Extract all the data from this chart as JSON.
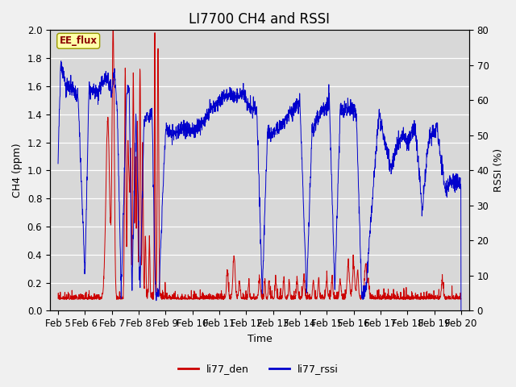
{
  "title": "LI7700 CH4 and RSSI",
  "xlabel": "Time",
  "ylabel_left": "CH4 (ppm)",
  "ylabel_right": "RSSI (%)",
  "ylim_left": [
    0.0,
    2.0
  ],
  "ylim_right": [
    0,
    80
  ],
  "yticks_left": [
    0.0,
    0.2,
    0.4,
    0.6,
    0.8,
    1.0,
    1.2,
    1.4,
    1.6,
    1.8,
    2.0
  ],
  "yticks_right": [
    0,
    10,
    20,
    30,
    40,
    50,
    60,
    70,
    80
  ],
  "xlim": [
    4.7,
    20.3
  ],
  "xtick_labels": [
    "Feb 5",
    "Feb 6",
    "Feb 7",
    "Feb 8",
    "Feb 9",
    "Feb 10",
    "Feb 11",
    "Feb 12",
    "Feb 13",
    "Feb 14",
    "Feb 15",
    "Feb 16",
    "Feb 17",
    "Feb 18",
    "Feb 19",
    "Feb 20"
  ],
  "xtick_positions": [
    5,
    6,
    7,
    8,
    9,
    10,
    11,
    12,
    13,
    14,
    15,
    16,
    17,
    18,
    19,
    20
  ],
  "annotation_text": "EE_flux",
  "fig_bg_color": "#f0f0f0",
  "plot_bg_color": "#d8d8d8",
  "line_color_red": "#cc0000",
  "line_color_blue": "#0000cc",
  "legend_label_red": "li77_den",
  "legend_label_blue": "li77_rssi",
  "title_fontsize": 12,
  "axis_label_fontsize": 9,
  "tick_fontsize": 8.5
}
